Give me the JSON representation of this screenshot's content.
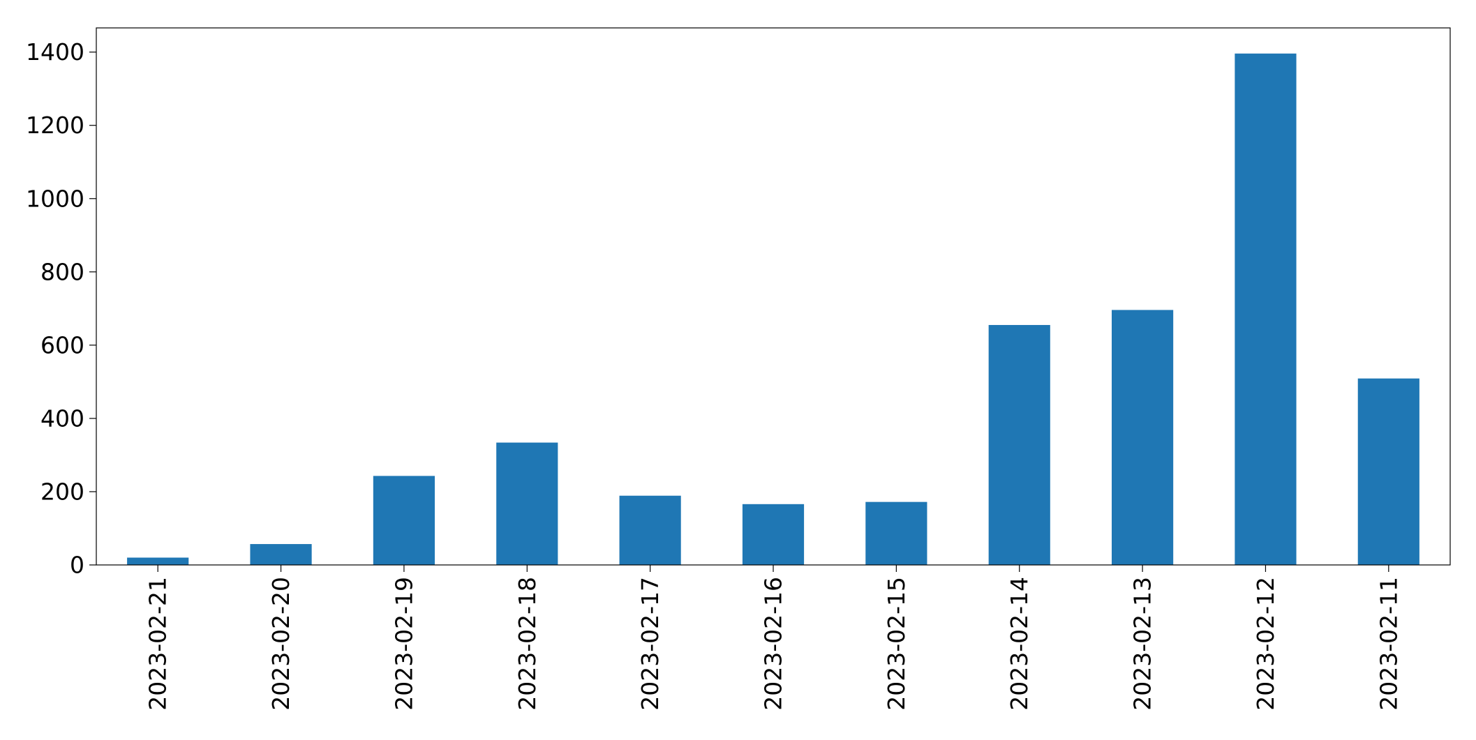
{
  "chart_data": {
    "type": "bar",
    "categories": [
      "2023-02-21",
      "2023-02-20",
      "2023-02-19",
      "2023-02-18",
      "2023-02-17",
      "2023-02-16",
      "2023-02-15",
      "2023-02-14",
      "2023-02-13",
      "2023-02-12",
      "2023-02-11"
    ],
    "values": [
      20,
      57,
      243,
      334,
      189,
      166,
      172,
      655,
      696,
      1396,
      509
    ],
    "title": "",
    "xlabel": "",
    "ylabel": "",
    "ylim": [
      0,
      1466
    ],
    "yticks": [
      0,
      200,
      400,
      600,
      800,
      1000,
      1200,
      1400
    ],
    "grid": false,
    "legend": "none",
    "bar_color": "#1f77b4"
  }
}
